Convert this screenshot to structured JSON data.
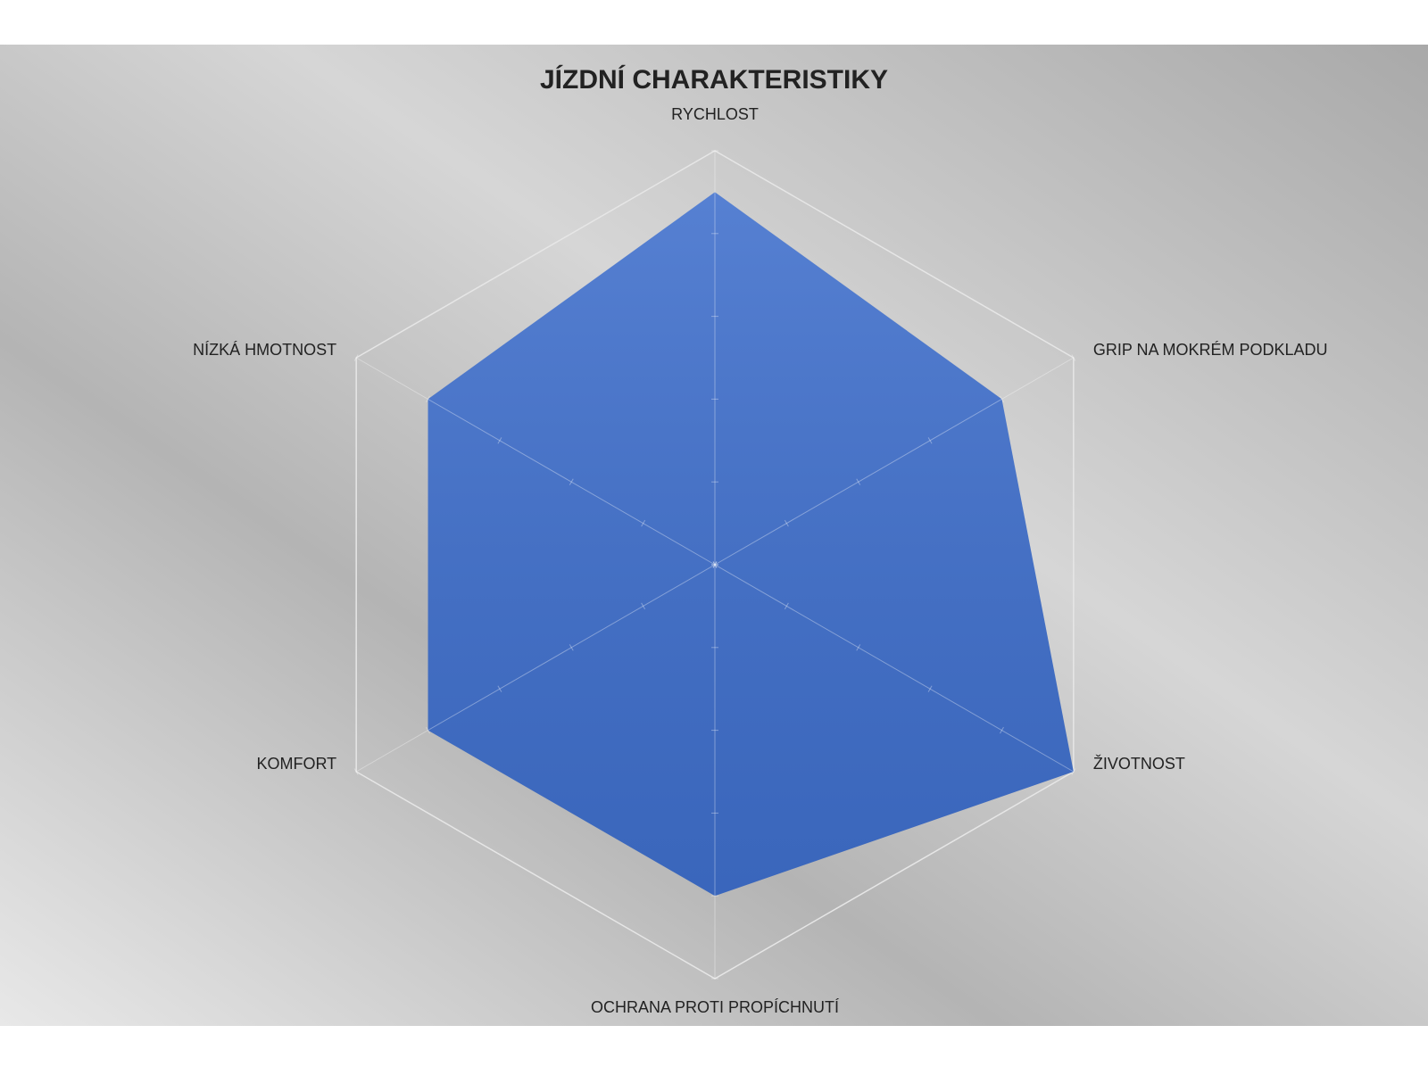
{
  "chart_data": {
    "type": "radar",
    "title": "JÍZDNÍ CHARAKTERISTIKY",
    "categories": [
      "RYCHLOST",
      "GRIP NA MOKRÉM PODKLADU",
      "ŽIVOTNOST",
      "OCHRANA PROTI PROPÍCHNUTÍ",
      "KOMFORT",
      "NÍZKÁ HMOTNOST"
    ],
    "values": [
      4.5,
      4,
      5,
      4,
      4,
      4
    ],
    "color": "#3f6fcc",
    "rlim": [
      0,
      5
    ],
    "rticks": [
      0,
      1,
      2,
      3,
      4,
      5
    ]
  }
}
